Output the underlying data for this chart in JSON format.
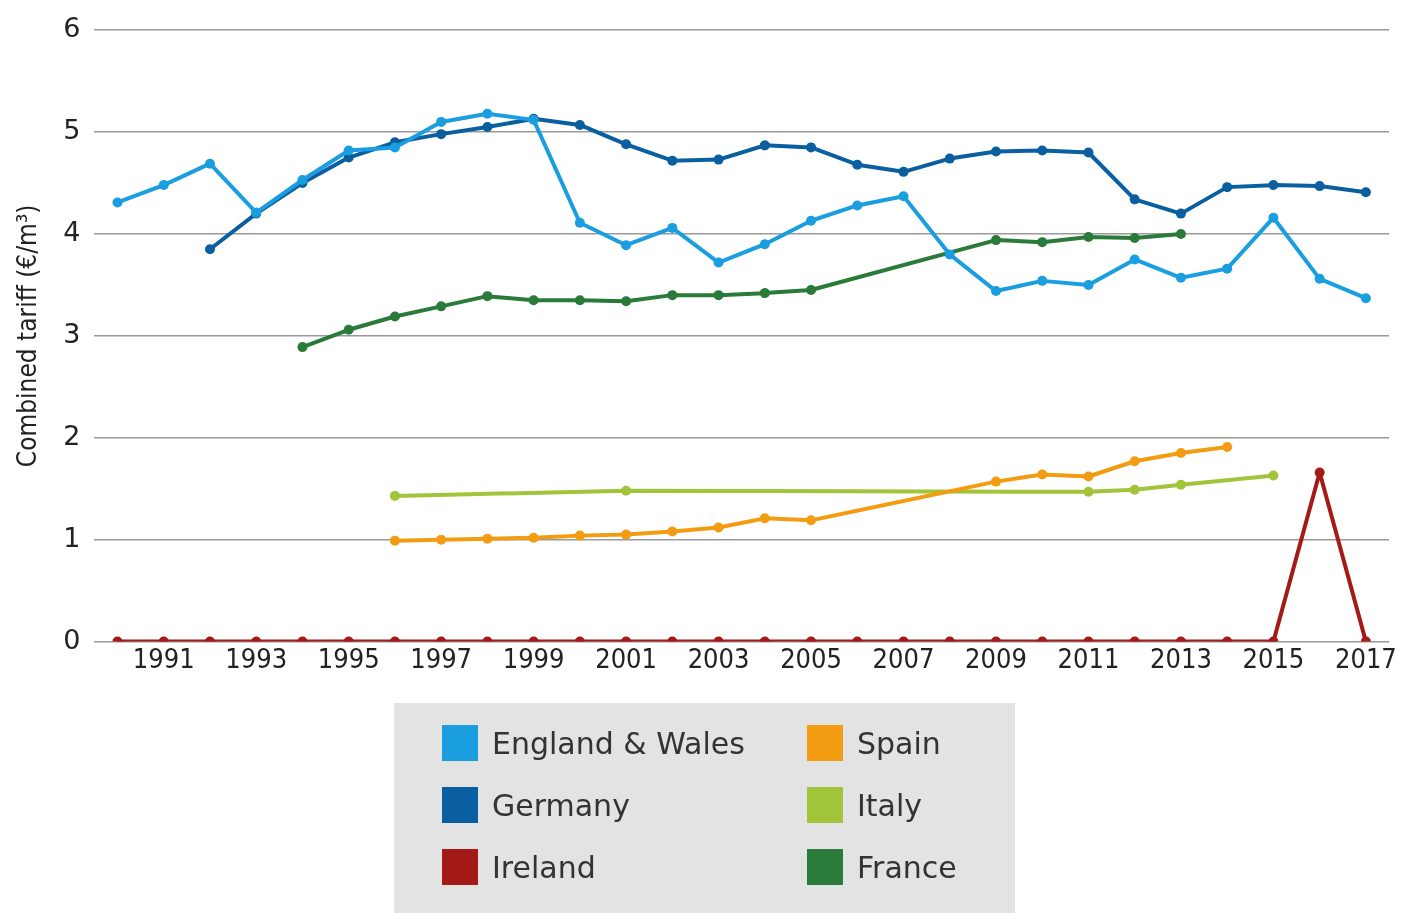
{
  "chart_data": {
    "type": "line",
    "ylabel": "Combined tariff (€/m³)",
    "x": [
      1990,
      1991,
      1992,
      1993,
      1994,
      1995,
      1996,
      1997,
      1998,
      1999,
      2000,
      2001,
      2002,
      2003,
      2004,
      2005,
      2006,
      2007,
      2008,
      2009,
      2010,
      2011,
      2012,
      2013,
      2014,
      2015,
      2016,
      2017
    ],
    "series": [
      {
        "name": "England & Wales",
        "color": "#1a9ee0",
        "values": [
          4.31,
          4.48,
          4.69,
          4.21,
          4.53,
          4.82,
          4.85,
          5.1,
          5.18,
          5.12,
          4.11,
          3.89,
          4.06,
          3.72,
          3.9,
          4.13,
          4.28,
          4.37,
          3.8,
          3.44,
          3.54,
          3.5,
          3.75,
          3.57,
          3.66,
          4.16,
          3.56,
          3.37
        ]
      },
      {
        "name": "Germany",
        "color": "#0a5fa0",
        "values": [
          null,
          null,
          3.85,
          4.2,
          4.5,
          4.75,
          4.9,
          4.98,
          5.05,
          5.13,
          5.07,
          4.88,
          4.72,
          4.73,
          4.87,
          4.85,
          4.68,
          4.61,
          4.74,
          4.81,
          4.82,
          4.8,
          4.34,
          4.2,
          4.46,
          4.48,
          4.47,
          4.41
        ]
      },
      {
        "name": "Ireland",
        "color": "#a31a17",
        "values": [
          0,
          0,
          0,
          0,
          0,
          0,
          0,
          0,
          0,
          0,
          0,
          0,
          0,
          0,
          0,
          0,
          0,
          0,
          0,
          0,
          0,
          0,
          0,
          0,
          0,
          0,
          1.66,
          0
        ]
      },
      {
        "name": "Spain",
        "color": "#f39c12",
        "values": [
          null,
          null,
          null,
          null,
          null,
          null,
          0.99,
          1.0,
          1.01,
          1.02,
          1.04,
          1.05,
          1.08,
          1.12,
          1.21,
          1.19,
          null,
          null,
          null,
          1.57,
          1.64,
          1.62,
          1.77,
          1.85,
          1.91,
          null,
          null,
          null
        ]
      },
      {
        "name": "Italy",
        "color": "#a2c43a",
        "values": [
          null,
          null,
          null,
          null,
          null,
          null,
          1.43,
          null,
          null,
          null,
          null,
          1.48,
          null,
          null,
          null,
          null,
          null,
          null,
          null,
          null,
          null,
          1.47,
          1.49,
          1.54,
          null,
          1.63,
          null,
          null
        ]
      },
      {
        "name": "France",
        "color": "#2a7a3a",
        "values": [
          null,
          null,
          null,
          null,
          2.89,
          3.06,
          3.19,
          3.29,
          3.39,
          3.35,
          3.35,
          3.34,
          3.4,
          3.4,
          3.42,
          3.45,
          null,
          null,
          null,
          3.94,
          3.92,
          3.97,
          3.96,
          4.0,
          null,
          null,
          null,
          null
        ]
      }
    ],
    "xlim": [
      1989.5,
      2017.5
    ],
    "xticks": [
      1991,
      1993,
      1995,
      1997,
      1999,
      2001,
      2003,
      2005,
      2007,
      2009,
      2011,
      2013,
      2015,
      2017
    ],
    "ylim": [
      0,
      6
    ],
    "yticks": [
      0,
      1,
      2,
      3,
      4,
      5,
      6
    ],
    "grid": "y",
    "legend": "bottom",
    "marker": "circle",
    "line_style": "solid"
  }
}
